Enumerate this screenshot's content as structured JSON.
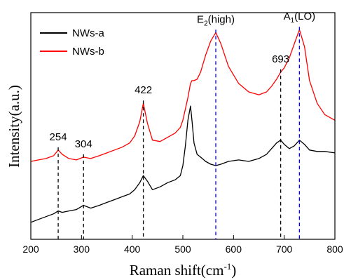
{
  "chart_data": {
    "type": "line",
    "xlabel_main": "Raman shift(cm",
    "xlabel_sup": "-1",
    "xlabel_tail": ")",
    "ylabel": "Intensity(a.u.)",
    "xlim": [
      200,
      800
    ],
    "x_ticks": [
      200,
      300,
      400,
      500,
      600,
      700,
      800
    ],
    "axis_break_near": 515,
    "y_ticks_shown": false,
    "legend_position": "top-left",
    "series": [
      {
        "name": "NWs-a",
        "color": "#000000",
        "x": [
          200,
          215,
          230,
          245,
          254,
          262,
          275,
          290,
          304,
          318,
          335,
          350,
          365,
          380,
          395,
          405,
          415,
          422,
          430,
          440,
          455,
          470,
          485,
          495,
          500,
          505,
          510,
          515,
          518,
          522,
          528,
          535,
          545,
          555,
          565,
          575,
          590,
          610,
          630,
          650,
          665,
          675,
          685,
          693,
          700,
          710,
          720,
          730,
          740,
          750,
          765,
          780,
          800
        ],
        "y": [
          12,
          14,
          16,
          18,
          20,
          19,
          20,
          21,
          24,
          22,
          24,
          26,
          28,
          30,
          32,
          35,
          40,
          45,
          41,
          35,
          37,
          40,
          42,
          45,
          52,
          66,
          84,
          94,
          84,
          68,
          60,
          58,
          55,
          53,
          52,
          53,
          55,
          56,
          55,
          57,
          60,
          64,
          68,
          70,
          67,
          64,
          66,
          70,
          67,
          63,
          62,
          62,
          61
        ]
      },
      {
        "name": "NWs-b",
        "color": "#ff0000",
        "x": [
          200,
          215,
          230,
          245,
          254,
          262,
          275,
          290,
          304,
          318,
          335,
          350,
          365,
          380,
          395,
          405,
          415,
          422,
          430,
          440,
          455,
          470,
          485,
          495,
          500,
          505,
          510,
          515,
          518,
          522,
          528,
          535,
          545,
          555,
          565,
          575,
          590,
          610,
          630,
          650,
          665,
          675,
          685,
          693,
          700,
          710,
          720,
          730,
          740,
          750,
          765,
          780,
          800
        ],
        "y": [
          55,
          56,
          57,
          59,
          63,
          60,
          57,
          56,
          58,
          57,
          59,
          61,
          63,
          65,
          68,
          73,
          83,
          96,
          82,
          70,
          69,
          72,
          75,
          79,
          84,
          92,
          100,
          110,
          112,
          112,
          113,
          118,
          130,
          140,
          146,
          138,
          122,
          110,
          104,
          102,
          104,
          108,
          113,
          118,
          121,
          128,
          138,
          148,
          136,
          112,
          96,
          88,
          84
        ]
      }
    ],
    "annotations": [
      {
        "text": "254",
        "x": 254,
        "line": "dashed",
        "color": "#000000"
      },
      {
        "text": "304",
        "x": 304,
        "line": "dashed",
        "color": "#000000"
      },
      {
        "text": "422",
        "x": 422,
        "line": "dashed",
        "color": "#000000"
      },
      {
        "text_main": "E",
        "text_sub": "2",
        "text_tail": "(high)",
        "x": 565,
        "line": "dashed",
        "color": "#0000ff"
      },
      {
        "text": "693",
        "x": 693,
        "line": "dashed",
        "color": "#000000"
      },
      {
        "text_main": "A",
        "text_sub": "1",
        "text_tail": "(LO)",
        "x": 730,
        "line": "dashed",
        "color": "#0000ff"
      }
    ]
  }
}
